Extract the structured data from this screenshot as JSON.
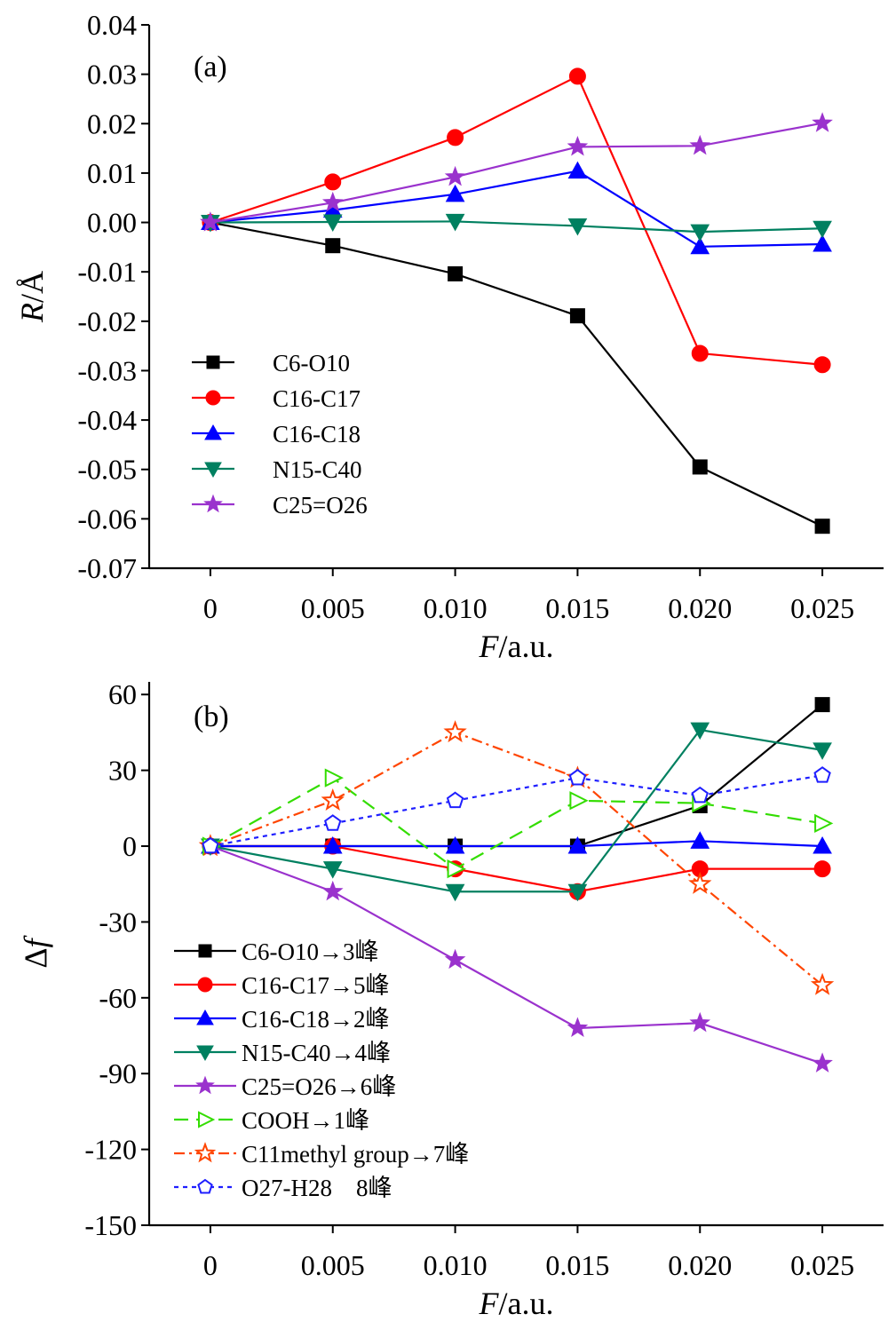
{
  "chart_data": [
    {
      "type": "line",
      "panel_label": "(a)",
      "xlabel_italic": "F",
      "xlabel_unit": "/a.u.",
      "ylabel_italic": "R",
      "ylabel_unit": "/Å",
      "x": [
        0,
        0.005,
        0.01,
        0.015,
        0.02,
        0.025
      ],
      "xtick_labels": [
        "0",
        "0.005",
        "0.010",
        "0.015",
        "0.020",
        "0.025"
      ],
      "xlim": [
        -0.0025,
        0.0275
      ],
      "ylim": [
        -0.07,
        0.04
      ],
      "yticks": [
        0.04,
        0.03,
        0.02,
        0.01,
        0.0,
        -0.01,
        -0.02,
        -0.03,
        -0.04,
        -0.05,
        -0.06,
        -0.07
      ],
      "ytick_labels": [
        "0.04",
        "0.03",
        "0.02",
        "0.01",
        "0.00",
        "-0.01",
        "-0.02",
        "-0.03",
        "-0.04",
        "-0.05",
        "-0.06",
        "-0.07"
      ],
      "grid": false,
      "legend_position": "bottom-left",
      "series": [
        {
          "name": "C6-O10",
          "color": "#000000",
          "marker": "square",
          "filled": true,
          "dash": "solid",
          "values": [
            0,
            -0.0047,
            -0.0104,
            -0.0189,
            -0.0495,
            -0.0615
          ]
        },
        {
          "name": "C16-C17",
          "color": "#ff0000",
          "marker": "circle",
          "filled": true,
          "dash": "solid",
          "values": [
            0,
            0.0082,
            0.0172,
            0.0296,
            -0.0265,
            -0.0288
          ]
        },
        {
          "name": "C16-C18",
          "color": "#0000ff",
          "marker": "triangle-up",
          "filled": true,
          "dash": "solid",
          "values": [
            0,
            0.0025,
            0.0057,
            0.0104,
            -0.0049,
            -0.0044
          ]
        },
        {
          "name": "N15-C40",
          "color": "#008060",
          "marker": "triangle-down",
          "filled": true,
          "dash": "solid",
          "values": [
            0,
            0.0001,
            0.0002,
            -0.0007,
            -0.0019,
            -0.0012
          ]
        },
        {
          "name": "C25=O26",
          "color": "#9a32cd",
          "marker": "star",
          "filled": true,
          "dash": "solid",
          "values": [
            0,
            0.004,
            0.0092,
            0.0153,
            0.0155,
            0.0201
          ]
        }
      ]
    },
    {
      "type": "line",
      "panel_label": "(b)",
      "xlabel_italic": "F",
      "xlabel_unit": "/a.u.",
      "ylabel_prefix": "Δ",
      "ylabel_italic": "f",
      "x": [
        0,
        0.005,
        0.01,
        0.015,
        0.02,
        0.025
      ],
      "xtick_labels": [
        "0",
        "0.005",
        "0.010",
        "0.015",
        "0.020",
        "0.025"
      ],
      "xlim": [
        -0.0025,
        0.0275
      ],
      "ylim": [
        -150,
        65
      ],
      "yticks": [
        60,
        30,
        0,
        -30,
        -60,
        -90,
        -120,
        -150
      ],
      "ytick_labels": [
        "60",
        "30",
        "0",
        "-30",
        "-60",
        "-90",
        "-120",
        "-150"
      ],
      "grid": false,
      "legend_position": "bottom-left",
      "series": [
        {
          "name": "C6-O10→3峰",
          "color": "#000000",
          "marker": "square",
          "filled": true,
          "dash": "solid",
          "values": [
            0,
            0,
            0,
            0,
            16,
            56
          ]
        },
        {
          "name": "C16-C17→5峰",
          "color": "#ff0000",
          "marker": "circle",
          "filled": true,
          "dash": "solid",
          "values": [
            0,
            0,
            -9,
            -18,
            -9,
            -9
          ]
        },
        {
          "name": "C16-C18→2峰",
          "color": "#0000ff",
          "marker": "triangle-up",
          "filled": true,
          "dash": "solid",
          "values": [
            0,
            0,
            0,
            0,
            2,
            0
          ]
        },
        {
          "name": "N15-C40→4峰",
          "color": "#008060",
          "marker": "triangle-down",
          "filled": true,
          "dash": "solid",
          "values": [
            0,
            -9,
            -18,
            -18,
            46,
            38
          ]
        },
        {
          "name": "C25=O26→6峰",
          "color": "#9a32cd",
          "marker": "star",
          "filled": true,
          "dash": "solid",
          "values": [
            0,
            -18,
            -45,
            -72,
            -70,
            -86
          ]
        },
        {
          "name": "COOH→1峰",
          "color": "#33dd00",
          "marker": "triangle-right",
          "filled": false,
          "dash": "dashed",
          "values": [
            0,
            27,
            -9,
            18,
            17,
            9
          ]
        },
        {
          "name": "C11methyl group→7峰",
          "color": "#ff4500",
          "marker": "star",
          "filled": false,
          "dash": "dashdot",
          "values": [
            0,
            18,
            45,
            27,
            -15,
            -55
          ]
        },
        {
          "name": "O27-H28　8峰",
          "color": "#1f1fff",
          "marker": "pentagon",
          "filled": false,
          "dash": "dotted",
          "values": [
            0,
            9,
            18,
            27,
            20,
            28
          ]
        }
      ]
    }
  ]
}
